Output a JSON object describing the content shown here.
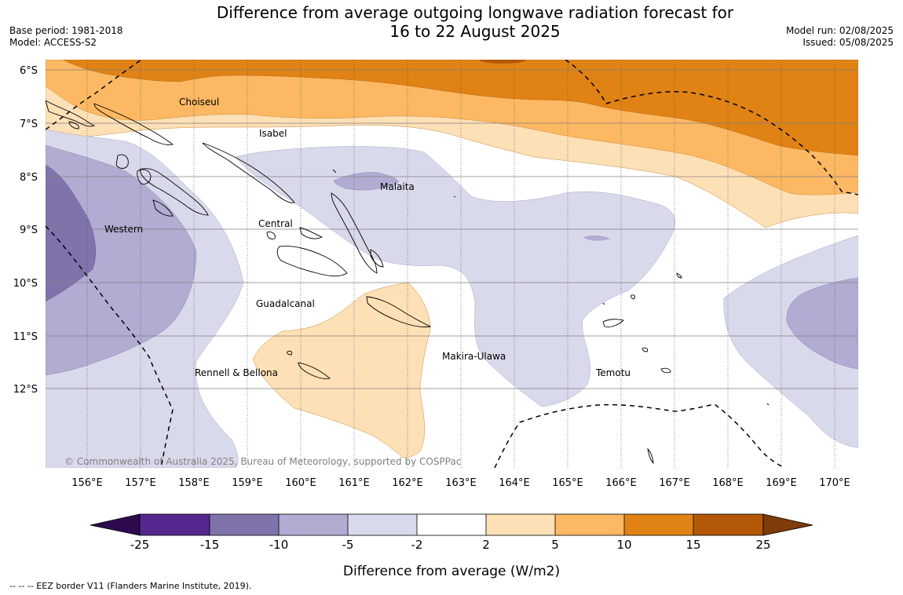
{
  "header": {
    "title_line1": "Difference from average outgoing longwave radiation forecast for",
    "title_line2": "16 to 22 August 2025",
    "base_period": "Base period: 1981-2018",
    "model": "Model: ACCESS-S2",
    "model_run": "Model run: 02/08/2025",
    "issued": "Issued: 05/08/2025"
  },
  "map": {
    "lat_ticks": [
      "6°S",
      "7°S",
      "8°S",
      "9°S",
      "10°S",
      "11°S",
      "12°S"
    ],
    "lon_ticks": [
      "156°E",
      "157°E",
      "158°E",
      "159°E",
      "160°E",
      "161°E",
      "162°E",
      "163°E",
      "164°E",
      "165°E",
      "166°E",
      "167°E",
      "168°E",
      "169°E",
      "170°E"
    ],
    "regions": [
      "Choiseul",
      "Isabel",
      "Malaita",
      "Western",
      "Central",
      "Guadalcanal",
      "Makira-Ulawa",
      "Rennell & Bellona",
      "Temotu"
    ],
    "copyright": "© Commonwealth of Australia 2025, Bureau of Meteorology, supported by COSPPac"
  },
  "colorbar": {
    "ticks": [
      "-25",
      "-15",
      "-10",
      "-5",
      "-2",
      "2",
      "5",
      "10",
      "15",
      "25"
    ],
    "colors": [
      "#2d0a4e",
      "#54278f",
      "#8073ac",
      "#b2abd2",
      "#d8daeb",
      "#ffffff",
      "#fee0b6",
      "#fdb863",
      "#e08214",
      "#b35806",
      "#7f3b08"
    ],
    "label": "Difference from average (W/m2)"
  },
  "legend": {
    "eez": "--  --  -- EEZ border V11 (Flanders Marine Institute, 2019)."
  }
}
